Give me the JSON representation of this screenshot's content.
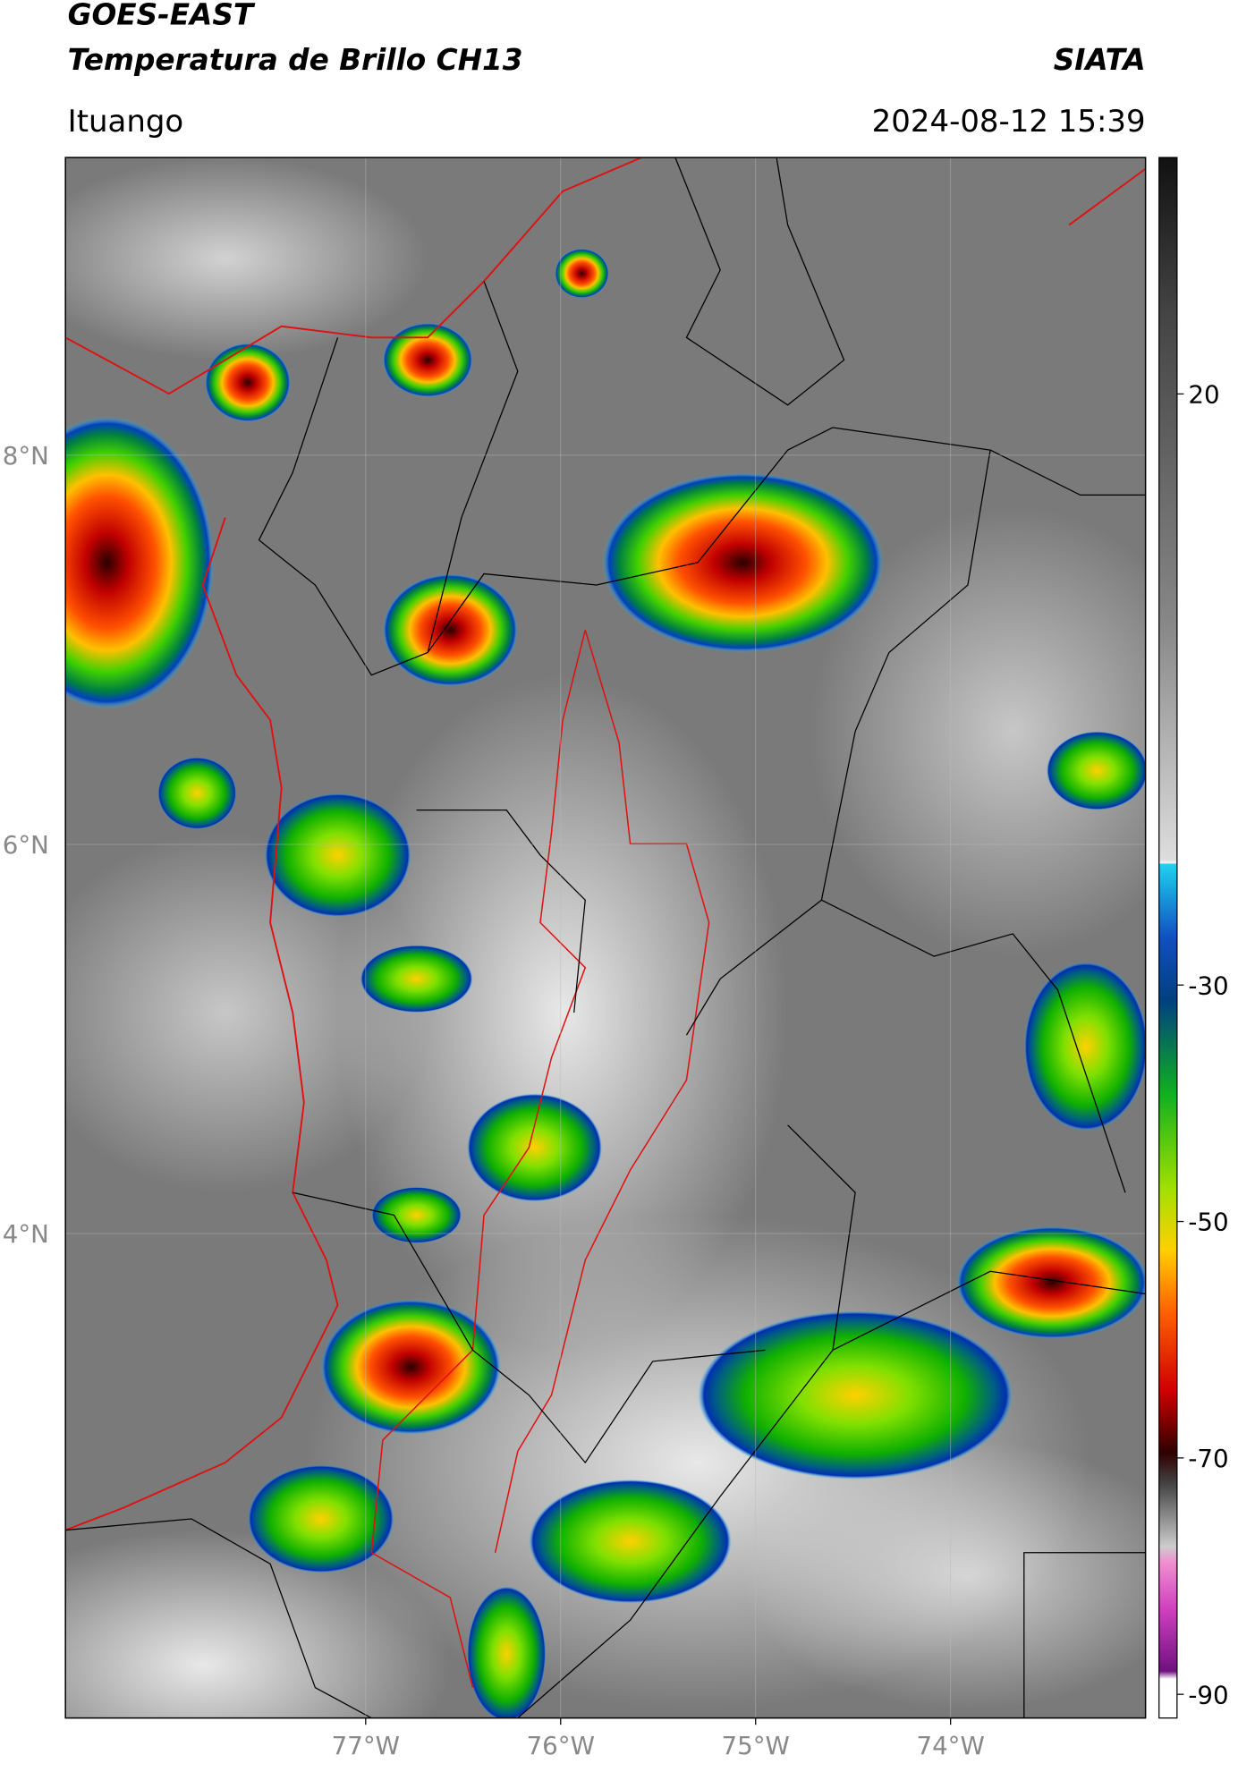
{
  "header": {
    "title": "GOES-EAST",
    "subtitle": "Temperatura de Brillo CH13",
    "agency": "SIATA",
    "location": "Ituango",
    "timestamp": "2024-08-12 15:39"
  },
  "map": {
    "xlim": [
      -78.54,
      -73.0
    ],
    "ylim": [
      1.51,
      9.53
    ],
    "xticks": [
      {
        "value": -77,
        "label": "77°W"
      },
      {
        "value": -76,
        "label": "76°W"
      },
      {
        "value": -75,
        "label": "75°W"
      },
      {
        "value": -74,
        "label": "74°W"
      }
    ],
    "yticks": [
      {
        "value": 8,
        "label": "8°N"
      },
      {
        "value": 6,
        "label": "6°N"
      },
      {
        "value": 4,
        "label": "4°N"
      }
    ]
  },
  "colorbar": {
    "lim": [
      -92,
      40
    ],
    "ticks": [
      20,
      -30,
      -50,
      -70,
      -90
    ]
  }
}
